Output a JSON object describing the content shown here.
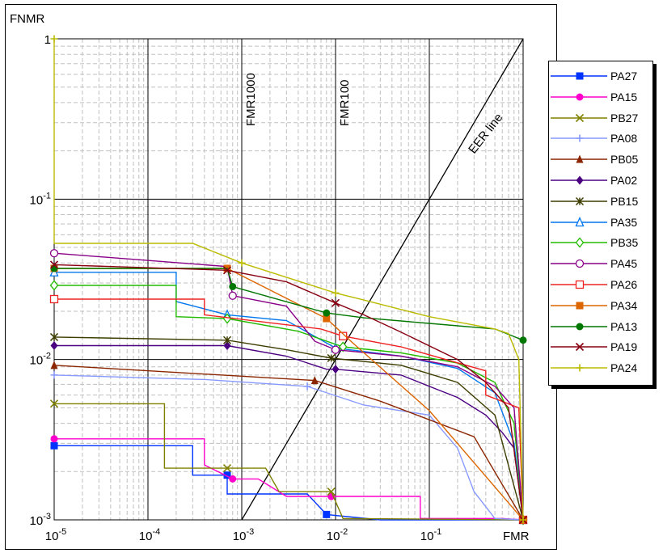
{
  "chart_data": {
    "type": "line",
    "title": "",
    "xlabel": "FMR",
    "ylabel": "FNMR",
    "xscale": "log",
    "yscale": "log",
    "xlim": [
      1e-05,
      1
    ],
    "ylim": [
      0.001,
      1
    ],
    "x_tick_labels": [
      {
        "base": "10",
        "exp": "-5"
      },
      {
        "base": "10",
        "exp": "-4"
      },
      {
        "base": "10",
        "exp": "-3"
      },
      {
        "base": "10",
        "exp": "-2"
      },
      {
        "base": "10",
        "exp": "-1"
      }
    ],
    "y_tick_labels": [
      {
        "base": "1",
        "exp": ""
      },
      {
        "base": "10",
        "exp": "-1"
      },
      {
        "base": "10",
        "exp": "-2"
      },
      {
        "base": "10",
        "exp": "-3"
      }
    ],
    "grid": true,
    "legend_position": "right",
    "reference_lines": [
      {
        "label": "FMR1000",
        "x": 0.001
      },
      {
        "label": "FMR100",
        "x": 0.01
      },
      {
        "label": "EER line",
        "diagonal": true
      }
    ],
    "series": [
      {
        "name": "PA27",
        "color": "#0033ff",
        "marker": "square",
        "points": [
          [
            1e-05,
            0.0029
          ],
          [
            0.0003,
            0.0029
          ],
          [
            0.0003,
            0.0019
          ],
          [
            0.0007,
            0.0019
          ],
          [
            0.0007,
            0.00145
          ],
          [
            0.0015,
            0.00145
          ],
          [
            0.0015,
            0.00145
          ],
          [
            0.005,
            0.00145
          ],
          [
            0.008,
            0.00108
          ],
          [
            0.03,
            0.001
          ],
          [
            1,
            0.001
          ]
        ]
      },
      {
        "name": "PA15",
        "color": "#ff00cc",
        "marker": "circle",
        "points": [
          [
            1e-05,
            0.0032
          ],
          [
            0.0004,
            0.0032
          ],
          [
            0.0004,
            0.0022
          ],
          [
            0.0008,
            0.0018
          ],
          [
            0.0015,
            0.0018
          ],
          [
            0.003,
            0.0014
          ],
          [
            0.009,
            0.0014
          ],
          [
            0.08,
            0.0014
          ],
          [
            0.08,
            0.00102
          ],
          [
            0.6,
            0.00102
          ],
          [
            1,
            0.001
          ]
        ]
      },
      {
        "name": "PB27",
        "color": "#808000",
        "marker": "x",
        "points": [
          [
            1e-05,
            0.0053
          ],
          [
            0.00015,
            0.0053
          ],
          [
            0.00015,
            0.0021
          ],
          [
            0.0007,
            0.0021
          ],
          [
            0.0018,
            0.0021
          ],
          [
            0.0025,
            0.0015
          ],
          [
            0.009,
            0.0015
          ],
          [
            0.012,
            0.00102
          ],
          [
            1,
            0.001
          ]
        ]
      },
      {
        "name": "PA08",
        "color": "#8899ff",
        "marker": "plus",
        "points": [
          [
            1e-05,
            0.008
          ],
          [
            0.0004,
            0.0075
          ],
          [
            0.005,
            0.0068
          ],
          [
            0.02,
            0.0052
          ],
          [
            0.1,
            0.0045
          ],
          [
            0.2,
            0.0028
          ],
          [
            0.3,
            0.0015
          ],
          [
            0.5,
            0.00102
          ],
          [
            1,
            0.001
          ]
        ]
      },
      {
        "name": "PB05",
        "color": "#8b2500",
        "marker": "triangle",
        "points": [
          [
            1e-05,
            0.0092
          ],
          [
            0.006,
            0.0074
          ],
          [
            0.03,
            0.0055
          ],
          [
            0.3,
            0.0033
          ],
          [
            1,
            0.001
          ]
        ]
      },
      {
        "name": "PA02",
        "color": "#4b0082",
        "marker": "diamond",
        "points": [
          [
            1e-05,
            0.0122
          ],
          [
            0.0007,
            0.0122
          ],
          [
            0.003,
            0.0105
          ],
          [
            0.008,
            0.0087
          ],
          [
            0.01,
            0.0087
          ],
          [
            0.05,
            0.008
          ],
          [
            0.1,
            0.0068
          ],
          [
            0.2,
            0.0058
          ],
          [
            0.4,
            0.0045
          ],
          [
            0.6,
            0.0035
          ],
          [
            0.8,
            0.0028
          ],
          [
            1,
            0.001
          ]
        ]
      },
      {
        "name": "PB15",
        "color": "#3d3d00",
        "marker": "asterisk",
        "points": [
          [
            1e-05,
            0.0138
          ],
          [
            0.0007,
            0.0132
          ],
          [
            0.003,
            0.0115
          ],
          [
            0.009,
            0.0102
          ],
          [
            0.05,
            0.0092
          ],
          [
            0.2,
            0.0072
          ],
          [
            0.5,
            0.0045
          ],
          [
            1,
            0.001
          ]
        ]
      },
      {
        "name": "PA35",
        "color": "#0077ee",
        "marker": "triangle-open",
        "points": [
          [
            1e-05,
            0.035
          ],
          [
            0.0002,
            0.035
          ],
          [
            0.0002,
            0.023
          ],
          [
            0.0007,
            0.019
          ],
          [
            0.003,
            0.0175
          ],
          [
            0.01,
            0.0118
          ],
          [
            0.05,
            0.0105
          ],
          [
            0.2,
            0.0088
          ],
          [
            0.5,
            0.0062
          ],
          [
            0.8,
            0.003
          ],
          [
            1,
            0.001
          ]
        ]
      },
      {
        "name": "PB35",
        "color": "#22bb00",
        "marker": "diamond-open",
        "points": [
          [
            1e-05,
            0.029
          ],
          [
            0.0002,
            0.029
          ],
          [
            0.0002,
            0.0185
          ],
          [
            0.0007,
            0.018
          ],
          [
            0.004,
            0.015
          ],
          [
            0.012,
            0.012
          ],
          [
            0.05,
            0.011
          ],
          [
            0.2,
            0.0095
          ],
          [
            0.5,
            0.0072
          ],
          [
            0.8,
            0.004
          ],
          [
            1,
            0.001
          ]
        ]
      },
      {
        "name": "PA45",
        "color": "#880088",
        "marker": "circle-open",
        "points": [
          [
            1e-05,
            0.046
          ],
          [
            0.0007,
            0.038
          ],
          [
            0.0008,
            0.025
          ],
          [
            0.003,
            0.0215
          ],
          [
            0.006,
            0.013
          ],
          [
            0.01,
            0.0115
          ],
          [
            0.05,
            0.0105
          ],
          [
            0.2,
            0.009
          ],
          [
            0.5,
            0.0068
          ],
          [
            0.8,
            0.005
          ],
          [
            1,
            0.001
          ]
        ]
      },
      {
        "name": "PA26",
        "color": "#ee2222",
        "marker": "square-open",
        "points": [
          [
            1e-05,
            0.0238
          ],
          [
            0.0004,
            0.0238
          ],
          [
            0.0004,
            0.019
          ],
          [
            0.007,
            0.0155
          ],
          [
            0.012,
            0.014
          ],
          [
            0.05,
            0.012
          ],
          [
            0.4,
            0.0085
          ],
          [
            0.4,
            0.006
          ],
          [
            0.9,
            0.005
          ],
          [
            1,
            0.001
          ]
        ]
      },
      {
        "name": "PA34",
        "color": "#dd6600",
        "marker": "square",
        "points": [
          [
            1e-05,
            0.037
          ],
          [
            0.0007,
            0.037
          ],
          [
            0.008,
            0.018
          ],
          [
            0.015,
            0.0128
          ],
          [
            0.1,
            0.0048
          ],
          [
            1,
            0.001
          ]
        ]
      },
      {
        "name": "PA13",
        "color": "#007700",
        "marker": "circle",
        "points": [
          [
            1e-05,
            0.037
          ],
          [
            0.0007,
            0.037
          ],
          [
            0.0008,
            0.0285
          ],
          [
            0.008,
            0.0195
          ],
          [
            0.02,
            0.0182
          ],
          [
            0.1,
            0.0168
          ],
          [
            0.5,
            0.0155
          ],
          [
            1,
            0.0132
          ]
        ]
      },
      {
        "name": "PA19",
        "color": "#880011",
        "marker": "x",
        "points": [
          [
            1e-05,
            0.039
          ],
          [
            0.0007,
            0.036
          ],
          [
            0.003,
            0.0305
          ],
          [
            0.01,
            0.0225
          ],
          [
            0.02,
            0.019
          ],
          [
            0.05,
            0.0148
          ],
          [
            0.2,
            0.01
          ],
          [
            0.4,
            0.0072
          ],
          [
            0.7,
            0.005
          ],
          [
            1,
            0.001
          ]
        ]
      },
      {
        "name": "PA24",
        "color": "#bbbb00",
        "marker": "plus",
        "points": [
          [
            1e-05,
            1
          ],
          [
            1e-05,
            0.053
          ],
          [
            0.0003,
            0.053
          ],
          [
            0.001,
            0.04
          ],
          [
            0.01,
            0.026
          ],
          [
            0.02,
            0.0235
          ],
          [
            0.1,
            0.0185
          ],
          [
            0.5,
            0.0155
          ],
          [
            0.7,
            0.0145
          ],
          [
            0.9,
            0.01
          ],
          [
            1,
            0.001
          ]
        ]
      }
    ]
  }
}
